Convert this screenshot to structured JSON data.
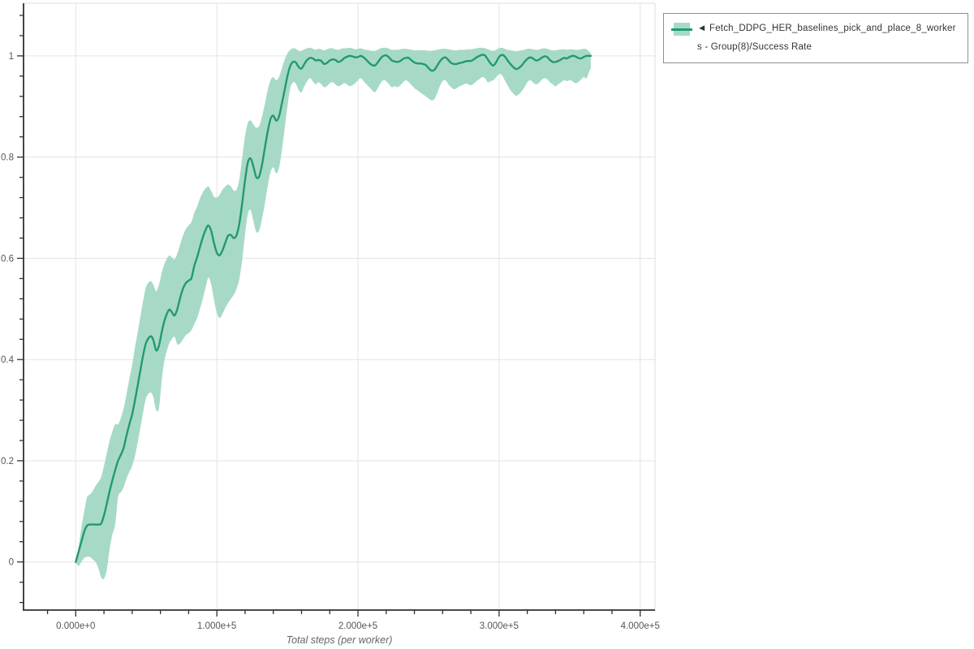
{
  "colors": {
    "background": "#ffffff",
    "line": "#239970",
    "band": "#a7dac6",
    "grid": "#e3e3e3",
    "plot_border": "#dcdcdc",
    "spine": "#2f2f2f",
    "tick": "#2f2f2f",
    "tick_label": "#555555",
    "axis_title": "#666666",
    "legend_border": "#8f8f8f",
    "legend_text": "#333333"
  },
  "legend": {
    "marker": "◄",
    "lines": [
      "◄ Fetch_DDPG_HER_baselines_pick_and_place_8_worker",
      "s - Group(8)/Success Rate"
    ]
  },
  "chart_data": {
    "type": "line",
    "title": "",
    "xlabel": "Total steps (per worker)",
    "ylabel": "",
    "grid": true,
    "legend_position": "top-right",
    "xlim": [
      -37000,
      410500
    ],
    "ylim": [
      -0.095,
      1.104
    ],
    "xaxis": {
      "major_ticks": [
        0,
        100000,
        200000,
        300000,
        400000
      ],
      "major_labels": [
        "0.000e+0",
        "1.000e+5",
        "2.000e+5",
        "3.000e+5",
        "4.000e+5"
      ],
      "minor_ticks": [
        -20000,
        20000,
        40000,
        60000,
        80000,
        120000,
        140000,
        160000,
        180000,
        220000,
        240000,
        260000,
        280000,
        320000,
        340000,
        360000,
        380000
      ]
    },
    "yaxis": {
      "major_ticks": [
        0,
        0.2,
        0.4,
        0.6,
        0.8,
        1
      ],
      "major_labels": [
        "0",
        "0.2",
        "0.4",
        "0.6",
        "0.8",
        "1"
      ],
      "minor_ticks": [
        -0.08,
        -0.04,
        0.04,
        0.08,
        0.12,
        0.16,
        0.24,
        0.28,
        0.32,
        0.36,
        0.44,
        0.48,
        0.52,
        0.56,
        0.64,
        0.68,
        0.72,
        0.76,
        0.84,
        0.88,
        0.92,
        0.96,
        1.04,
        1.08
      ]
    },
    "series": [
      {
        "name": "Fetch_DDPG_HER_baselines_pick_and_place_8_workers - Group(8)/Success Rate",
        "x": [
          0,
          2000,
          4000,
          6000,
          8000,
          10000,
          12000,
          14000,
          16000,
          18000,
          20000,
          22000,
          24000,
          26000,
          28000,
          30000,
          32000,
          34000,
          36000,
          38000,
          40000,
          42000,
          44000,
          46000,
          48000,
          50000,
          53000,
          55000,
          57000,
          59000,
          61000,
          63000,
          66000,
          68000,
          70000,
          72000,
          74000,
          76000,
          78000,
          80000,
          82000,
          84000,
          86000,
          88000,
          90000,
          92000,
          94000,
          96000,
          98000,
          100000,
          102000,
          104000,
          106000,
          108000,
          110000,
          112000,
          114000,
          116000,
          118000,
          120000,
          122000,
          124000,
          126000,
          128000,
          130000,
          132000,
          134000,
          136000,
          138000,
          140000,
          142000,
          144000,
          146000,
          148000,
          150000,
          152000,
          154000,
          156000,
          158000,
          160000,
          162000,
          164000,
          166000,
          168000,
          170000,
          172000,
          174000,
          176000,
          178000,
          180000,
          182000,
          184000,
          186000,
          188000,
          190000,
          192000,
          194000,
          196000,
          198000,
          200000,
          202000,
          204000,
          206000,
          208000,
          210000,
          212000,
          214000,
          216000,
          218000,
          220000,
          222000,
          224000,
          226000,
          228000,
          230000,
          232000,
          234000,
          236000,
          238000,
          240000,
          242000,
          244000,
          246000,
          248000,
          250000,
          252000,
          254000,
          256000,
          258000,
          260000,
          262000,
          264000,
          266000,
          268000,
          270000,
          272000,
          274000,
          276000,
          278000,
          280000,
          282000,
          284000,
          286000,
          288000,
          290000,
          292000,
          294000,
          296000,
          298000,
          300000,
          302000,
          304000,
          306000,
          308000,
          310000,
          312000,
          314000,
          316000,
          318000,
          320000,
          322000,
          324000,
          326000,
          328000,
          330000,
          332000,
          334000,
          336000,
          338000,
          340000,
          342000,
          344000,
          346000,
          348000,
          350000,
          352000,
          354000,
          356000,
          358000,
          360000,
          362000,
          364000,
          365000
        ],
        "y": [
          0,
          0.02,
          0.04,
          0.06,
          0.072,
          0.074,
          0.074,
          0.074,
          0.074,
          0.076,
          0.092,
          0.115,
          0.14,
          0.162,
          0.182,
          0.2,
          0.212,
          0.226,
          0.25,
          0.272,
          0.292,
          0.32,
          0.35,
          0.382,
          0.412,
          0.434,
          0.446,
          0.438,
          0.418,
          0.428,
          0.455,
          0.478,
          0.498,
          0.494,
          0.487,
          0.5,
          0.522,
          0.54,
          0.551,
          0.556,
          0.561,
          0.585,
          0.602,
          0.622,
          0.641,
          0.656,
          0.665,
          0.654,
          0.63,
          0.611,
          0.606,
          0.616,
          0.631,
          0.645,
          0.646,
          0.64,
          0.646,
          0.67,
          0.71,
          0.755,
          0.79,
          0.797,
          0.78,
          0.76,
          0.762,
          0.785,
          0.818,
          0.85,
          0.875,
          0.882,
          0.872,
          0.88,
          0.905,
          0.932,
          0.96,
          0.98,
          0.988,
          0.987,
          0.978,
          0.975,
          0.984,
          0.992,
          0.996,
          0.995,
          0.991,
          0.992,
          0.99,
          0.984,
          0.986,
          0.991,
          0.993,
          0.992,
          0.988,
          0.99,
          0.995,
          0.998,
          1.0,
          0.999,
          0.997,
          0.998,
          1.0,
          0.997,
          0.992,
          0.986,
          0.982,
          0.981,
          0.987,
          0.995,
          1.0,
          1.001,
          0.997,
          0.991,
          0.989,
          0.988,
          0.99,
          0.994,
          0.996,
          0.996,
          0.991,
          0.987,
          0.985,
          0.985,
          0.984,
          0.982,
          0.976,
          0.971,
          0.972,
          0.98,
          0.989,
          0.995,
          0.997,
          0.992,
          0.986,
          0.984,
          0.984,
          0.986,
          0.987,
          0.989,
          0.99,
          0.99,
          0.993,
          0.997,
          1.0,
          1.002,
          1.001,
          0.993,
          0.985,
          0.981,
          0.988,
          0.998,
          1.002,
          0.999,
          0.991,
          0.984,
          0.978,
          0.974,
          0.976,
          0.981,
          0.988,
          0.994,
          0.997,
          0.995,
          0.991,
          0.992,
          0.996,
          0.999,
          0.998,
          0.992,
          0.988,
          0.988,
          0.99,
          0.993,
          0.996,
          0.995,
          0.998,
          1.0,
          0.999,
          0.996,
          0.995,
          0.998,
          1.0,
          1.0,
          1.0
        ],
        "lo": [
          0,
          -0.008,
          0,
          0.008,
          0.01,
          0.01,
          0.005,
          0,
          -0.012,
          -0.03,
          -0.033,
          -0.015,
          0.025,
          0.055,
          0.075,
          0.128,
          0.138,
          0.148,
          0.165,
          0.178,
          0.19,
          0.21,
          0.238,
          0.268,
          0.3,
          0.325,
          0.335,
          0.325,
          0.3,
          0.305,
          0.36,
          0.4,
          0.43,
          0.44,
          0.445,
          0.43,
          0.432,
          0.44,
          0.448,
          0.452,
          0.458,
          0.47,
          0.482,
          0.5,
          0.52,
          0.542,
          0.562,
          0.548,
          0.518,
          0.492,
          0.482,
          0.49,
          0.502,
          0.512,
          0.52,
          0.528,
          0.54,
          0.56,
          0.598,
          0.648,
          0.688,
          0.695,
          0.672,
          0.652,
          0.655,
          0.678,
          0.708,
          0.742,
          0.77,
          0.78,
          0.768,
          0.778,
          0.812,
          0.855,
          0.9,
          0.935,
          0.948,
          0.945,
          0.932,
          0.928,
          0.94,
          0.95,
          0.956,
          0.95,
          0.944,
          0.948,
          0.944,
          0.938,
          0.94,
          0.946,
          0.948,
          0.944,
          0.94,
          0.942,
          0.946,
          0.944,
          0.94,
          0.942,
          0.946,
          0.952,
          0.956,
          0.95,
          0.944,
          0.938,
          0.932,
          0.928,
          0.936,
          0.946,
          0.952,
          0.95,
          0.944,
          0.938,
          0.94,
          0.938,
          0.942,
          0.948,
          0.952,
          0.948,
          0.942,
          0.936,
          0.932,
          0.928,
          0.924,
          0.92,
          0.916,
          0.912,
          0.914,
          0.925,
          0.94,
          0.95,
          0.952,
          0.944,
          0.938,
          0.934,
          0.936,
          0.94,
          0.942,
          0.945,
          0.944,
          0.942,
          0.945,
          0.95,
          0.954,
          0.958,
          0.956,
          0.948,
          0.95,
          0.952,
          0.958,
          0.964,
          0.962,
          0.952,
          0.942,
          0.932,
          0.926,
          0.921,
          0.924,
          0.93,
          0.938,
          0.948,
          0.952,
          0.948,
          0.944,
          0.946,
          0.952,
          0.956,
          0.954,
          0.948,
          0.944,
          0.94,
          0.944,
          0.948,
          0.952,
          0.95,
          0.952,
          0.95,
          0.946,
          0.948,
          0.953,
          0.958,
          0.956,
          0.97,
          0.975
        ],
        "hi": [
          0,
          0.03,
          0.068,
          0.1,
          0.128,
          0.133,
          0.14,
          0.15,
          0.158,
          0.168,
          0.19,
          0.215,
          0.24,
          0.258,
          0.272,
          0.272,
          0.285,
          0.305,
          0.332,
          0.362,
          0.39,
          0.425,
          0.455,
          0.488,
          0.52,
          0.545,
          0.555,
          0.548,
          0.535,
          0.548,
          0.572,
          0.59,
          0.605,
          0.602,
          0.598,
          0.61,
          0.628,
          0.645,
          0.658,
          0.665,
          0.672,
          0.69,
          0.702,
          0.718,
          0.73,
          0.738,
          0.742,
          0.733,
          0.722,
          0.72,
          0.726,
          0.736,
          0.742,
          0.746,
          0.742,
          0.734,
          0.736,
          0.758,
          0.8,
          0.842,
          0.868,
          0.872,
          0.864,
          0.858,
          0.862,
          0.88,
          0.905,
          0.932,
          0.952,
          0.958,
          0.952,
          0.958,
          0.975,
          0.992,
          1.005,
          1.012,
          1.015,
          1.014,
          1.01,
          1.01,
          1.013,
          1.015,
          1.016,
          1.014,
          1.012,
          1.014,
          1.013,
          1.011,
          1.013,
          1.015,
          1.015,
          1.013,
          1.012,
          1.014,
          1.015,
          1.015,
          1.016,
          1.015,
          1.013,
          1.014,
          1.015,
          1.013,
          1.012,
          1.011,
          1.01,
          1.01,
          1.012,
          1.015,
          1.016,
          1.016,
          1.014,
          1.012,
          1.012,
          1.012,
          1.013,
          1.014,
          1.014,
          1.013,
          1.012,
          1.011,
          1.011,
          1.011,
          1.011,
          1.011,
          1.01,
          1.01,
          1.011,
          1.012,
          1.013,
          1.014,
          1.014,
          1.013,
          1.012,
          1.011,
          1.011,
          1.012,
          1.012,
          1.012,
          1.013,
          1.013,
          1.014,
          1.015,
          1.016,
          1.016,
          1.015,
          1.013,
          1.011,
          1.01,
          1.012,
          1.015,
          1.016,
          1.014,
          1.012,
          1.011,
          1.01,
          1.009,
          1.01,
          1.011,
          1.012,
          1.014,
          1.014,
          1.013,
          1.012,
          1.012,
          1.014,
          1.015,
          1.014,
          1.012,
          1.011,
          1.011,
          1.012,
          1.013,
          1.013,
          1.012,
          1.013,
          1.013,
          1.012,
          1.012,
          1.013,
          1.014,
          1.013,
          1.008,
          1.005
        ]
      }
    ]
  }
}
